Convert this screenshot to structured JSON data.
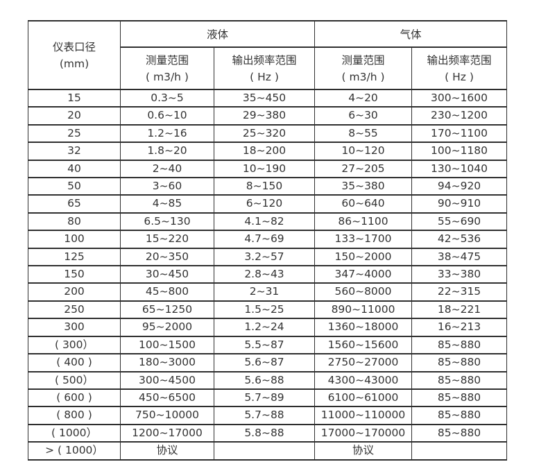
{
  "colors": {
    "background": "#ffffff",
    "border": "#2e2e2e",
    "text": "#333333"
  },
  "table": {
    "header": {
      "diameter_line1": "仪表口径",
      "diameter_line2": "(mm)",
      "group_liquid": "液体",
      "group_gas": "气体",
      "measure_line1": "测量范围",
      "measure_line2": "( m3/h )",
      "freq_line1": "输出频率范围",
      "freq_line2": "( Hz )"
    },
    "rows": [
      [
        "15",
        "0.3~5",
        "35~450",
        "4~20",
        "300~1600"
      ],
      [
        "20",
        "0.6~10",
        "29~380",
        "6~30",
        "230~1200"
      ],
      [
        "25",
        "1.2~16",
        "25~320",
        "8~55",
        "170~1100"
      ],
      [
        "32",
        "1.8~20",
        "18~200",
        "10~120",
        "100~1180"
      ],
      [
        "40",
        "2~40",
        "10~190",
        "27~205",
        "130~1040"
      ],
      [
        "50",
        "3~60",
        "8~150",
        "35~380",
        "94~920"
      ],
      [
        "65",
        "4~85",
        "6~120",
        "60~640",
        "90~910"
      ],
      [
        "80",
        "6.5~130",
        "4.1~82",
        "86~1100",
        "55~690"
      ],
      [
        "100",
        "15~220",
        "4.7~69",
        "133~1700",
        "42~536"
      ],
      [
        "125",
        "20~350",
        "3.2~57",
        "150~2000",
        "38~475"
      ],
      [
        "150",
        "30~450",
        "2.8~43",
        "347~4000",
        "33~380"
      ],
      [
        "200",
        "45~800",
        "2~31",
        "560~8000",
        "22~315"
      ],
      [
        "250",
        "65~1250",
        "1.5~25",
        "890~11000",
        "18~221"
      ],
      [
        "300",
        "95~2000",
        "1.2~24",
        "1360~18000",
        "16~213"
      ],
      [
        "( 300）",
        "100~1500",
        "5.5~87",
        "1560~15600",
        "85~880"
      ],
      [
        "( 400 )",
        "180~3000",
        "5.6~87",
        "2750~27000",
        "85~880"
      ],
      [
        "( 500）",
        "300~4500",
        "5.6~88",
        "4300~43000",
        "85~880"
      ],
      [
        "( 600 )",
        "450~6500",
        "5.7~89",
        "6100~61000",
        "85~880"
      ],
      [
        "( 800 )",
        "750~10000",
        "5.7~88",
        "11000~110000",
        "85~880"
      ],
      [
        "( 1000）",
        "1200~17000",
        "5.8~88",
        "17000~170000",
        "85~880"
      ],
      [
        "> ( 1000）",
        "协议",
        "",
        "协议",
        ""
      ]
    ]
  }
}
